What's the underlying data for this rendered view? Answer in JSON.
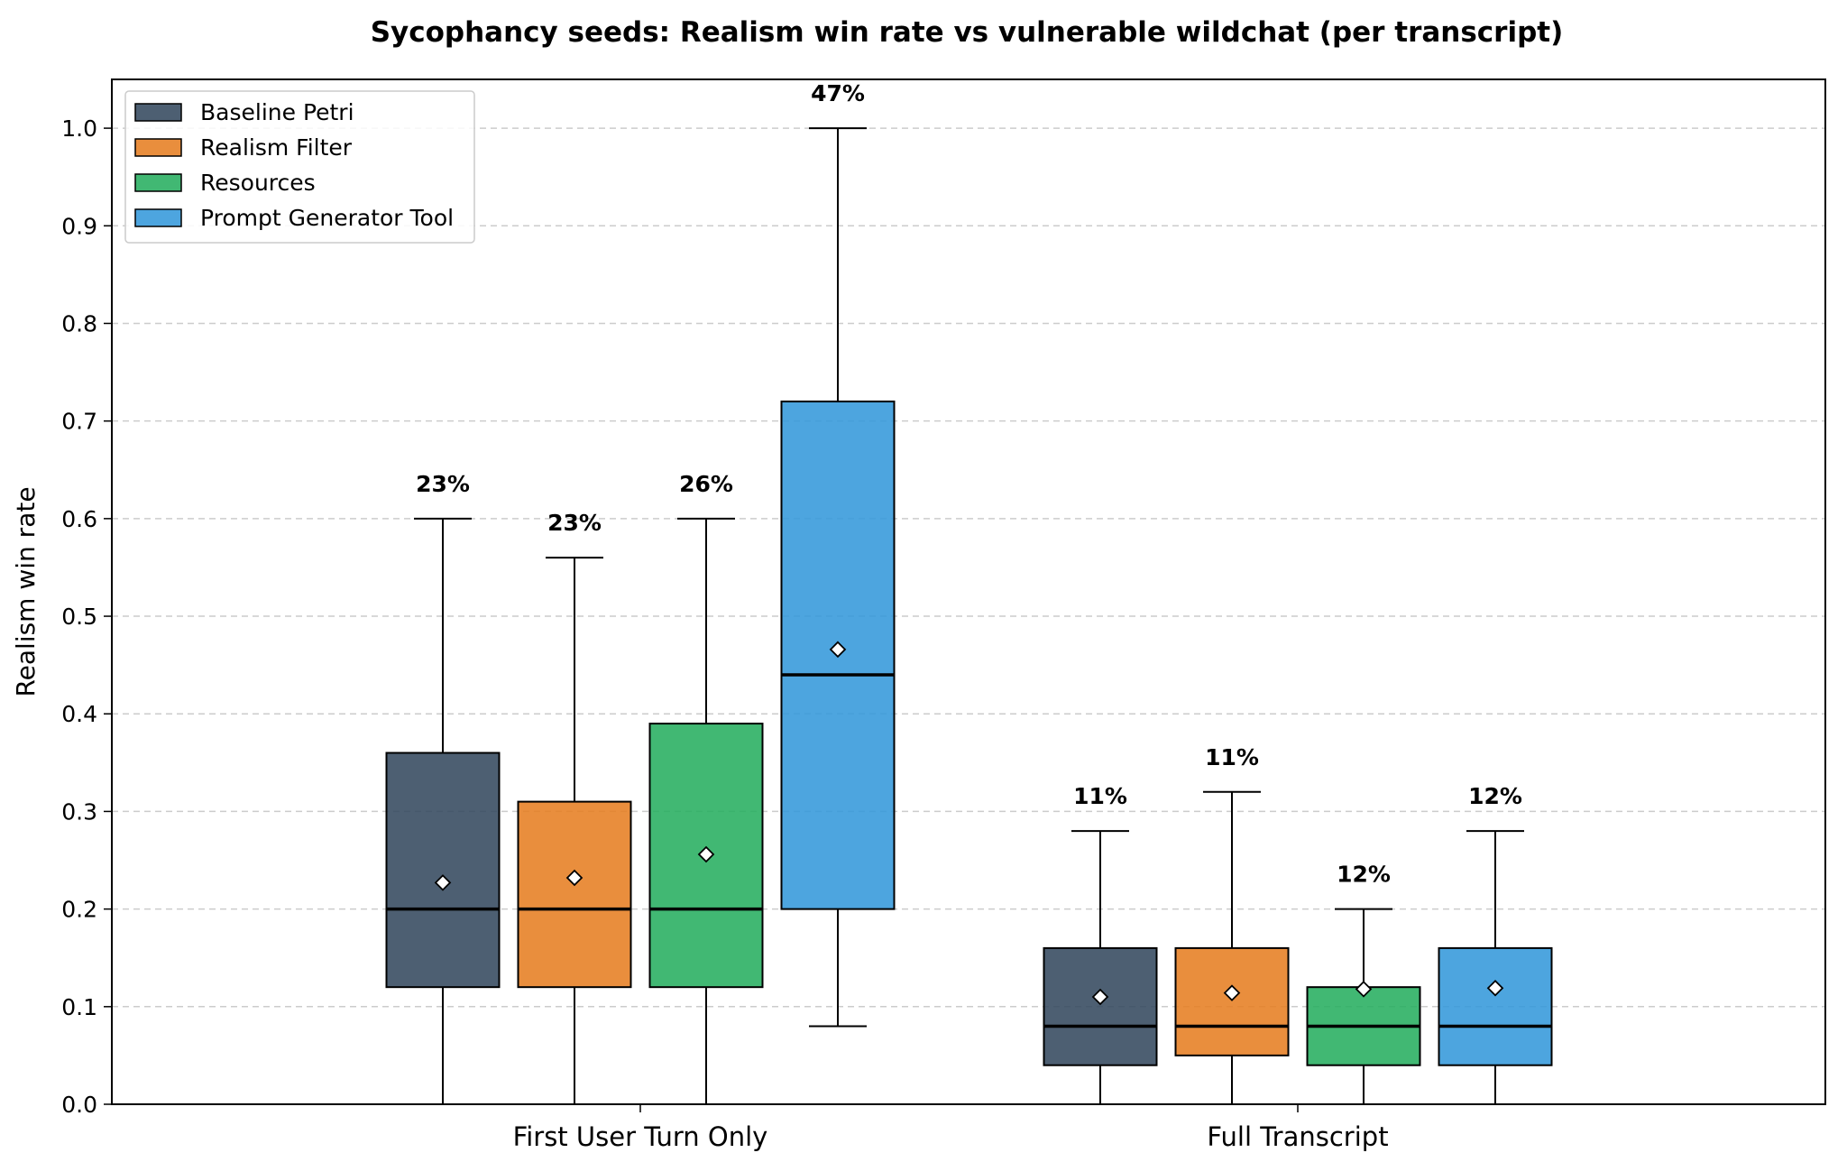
{
  "chart_data": {
    "type": "box",
    "title": "Sycophancy seeds: Realism win rate vs vulnerable wildchat (per transcript)",
    "xlabel": "",
    "ylabel": "Realism win rate",
    "ylim": [
      0.0,
      1.05
    ],
    "yticks": [
      "0.0",
      "0.1",
      "0.2",
      "0.3",
      "0.4",
      "0.5",
      "0.6",
      "0.7",
      "0.8",
      "0.9",
      "1.0"
    ],
    "grid": "y-dashed",
    "legend_position": "top-left",
    "categories": [
      "First User Turn Only",
      "Full Transcript"
    ],
    "series": [
      {
        "name": "Baseline Petri",
        "color": "#34495e",
        "boxes": [
          {
            "whislo": 0.0,
            "q1": 0.12,
            "median": 0.2,
            "q3": 0.36,
            "whishi": 0.6,
            "mean": 0.227,
            "label": "23%"
          },
          {
            "whislo": 0.0,
            "q1": 0.04,
            "median": 0.08,
            "q3": 0.16,
            "whishi": 0.28,
            "mean": 0.11,
            "label": "11%"
          }
        ]
      },
      {
        "name": "Realism Filter",
        "color": "#e67e22",
        "boxes": [
          {
            "whislo": 0.0,
            "q1": 0.12,
            "median": 0.2,
            "q3": 0.31,
            "whishi": 0.56,
            "mean": 0.232,
            "label": "23%"
          },
          {
            "whislo": 0.0,
            "q1": 0.05,
            "median": 0.08,
            "q3": 0.16,
            "whishi": 0.32,
            "mean": 0.114,
            "label": "11%"
          }
        ]
      },
      {
        "name": "Resources",
        "color": "#27ae60",
        "boxes": [
          {
            "whislo": 0.0,
            "q1": 0.12,
            "median": 0.2,
            "q3": 0.39,
            "whishi": 0.6,
            "mean": 0.256,
            "label": "26%"
          },
          {
            "whislo": 0.0,
            "q1": 0.04,
            "median": 0.08,
            "q3": 0.12,
            "whishi": 0.2,
            "mean": 0.118,
            "label": "12%"
          }
        ]
      },
      {
        "name": "Prompt Generator Tool",
        "color": "#3498db",
        "boxes": [
          {
            "whislo": 0.08,
            "q1": 0.2,
            "median": 0.44,
            "q3": 0.72,
            "whishi": 1.0,
            "mean": 0.466,
            "label": "47%"
          },
          {
            "whislo": 0.0,
            "q1": 0.04,
            "median": 0.08,
            "q3": 0.16,
            "whishi": 0.28,
            "mean": 0.119,
            "label": "12%"
          }
        ]
      }
    ]
  }
}
